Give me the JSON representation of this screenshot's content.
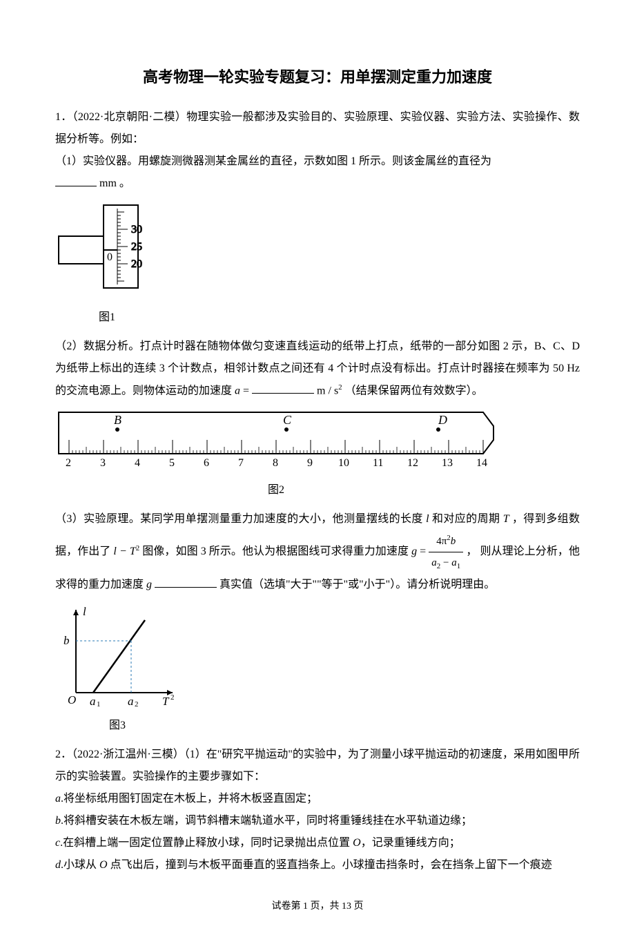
{
  "title": "高考物理一轮实验专题复习：用单摆测定重力加速度",
  "q1": {
    "header": "1．（2022·北京朝阳·二模）物理实验一般都涉及实验目的、实验原理、实验仪器、实验方法、实验操作、数据分析等。例如：",
    "p1": "（1）实验仪器。用螺旋测微器测某金属丝的直径，示数如图 1 所示。则该金属丝的直径为",
    "p1_unit": " mm 。",
    "fig1": {
      "label": "图1",
      "ticks": [
        "30",
        "25",
        "20"
      ],
      "main_zero": "0"
    },
    "p2_a": "（2）数据分析。打点计时器在随物体做匀变速直线运动的纸带上打点，纸带的一部分如图 2 示，B、C、D 为纸带上标出的连续 3 个计数点，相邻计数点之间还有 4 个计时点没有标出。打点计时器接在频率为",
    "p2_b": "50 Hz 的交流电源上。则物体运动的加速度 ",
    "p2_c": "（结果保留两位有效数字）。",
    "accel_var": "a",
    "accel_unit": "m / s",
    "accel_unit_sup": "2",
    "fig2": {
      "label": "图2",
      "points": [
        "B",
        "C",
        "D"
      ],
      "ticks": [
        "2",
        "3",
        "4",
        "5",
        "6",
        "7",
        "8",
        "9",
        "10",
        "11",
        "12",
        "13",
        "14"
      ]
    },
    "p3_a": "（3）实验原理。某同学用单摆测量重力加速度的大小，他测量摆线的长度 ",
    "p3_b": " 和对应的周期 ",
    "p3_c": "，得到多组数据，作出了 ",
    "p3_d": " 图像，如图 3 所示。他认为根据图线可求得重力加速度 ",
    "p3_e": " ， 则从理论上分析，他求得的重力加速度 ",
    "p3_f": "真实值（选填\"大于\"\"等于\"或\"小于\"）。请分析说明理由。",
    "var_l": "l",
    "var_T": "T",
    "var_g": "g",
    "formula_num": "4π",
    "formula_num_sup": "2",
    "formula_num_b": "b",
    "formula_den_a2": "a",
    "formula_den_sub2": "2",
    "formula_den_minus": " − ",
    "formula_den_a1": "a",
    "formula_den_sub1": "1",
    "fig3": {
      "label": "图3",
      "y_axis": "l",
      "x_axis": "T",
      "x_axis_sup": "2",
      "b_label": "b",
      "O_label": "O",
      "a1_label": "a",
      "a1_sub": "1",
      "a2_label": "a",
      "a2_sub": "2"
    }
  },
  "q2": {
    "header": "2．（2022·浙江温州·三模）（1）在\"研究平抛运动\"的实验中，为了测量小球平抛运动的初速度，采用如图甲所示的实验装置。实验操作的主要步骤如下：",
    "a": ".将坐标纸用图钉固定在木板上，并将木板竖直固定；",
    "b": ".将斜槽安装在木板左端，调节斜槽末端轨道水平，同时将重锤线挂在水平轨道边缘；",
    "c": ".在斜槽上端一固定位置静止释放小球，同时记录抛出点位置 ",
    "c2": "，记录重锤线方向；",
    "O_var": "O",
    "d": ".小球从 ",
    "d2": " 点飞出后，撞到与木板平面垂直的竖直挡条上。小球撞击挡条时，会在挡条上留下一个痕迹",
    "la": "a",
    "lb": "b",
    "lc": "c",
    "ld": "d"
  },
  "footer": "试卷第 1 页，共 13 页"
}
